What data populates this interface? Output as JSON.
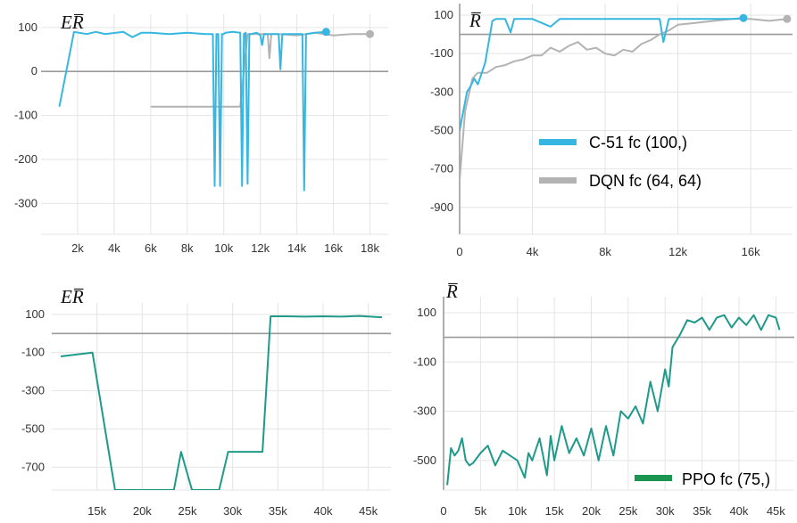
{
  "chart_data": [
    {
      "type": "line",
      "ylabel": "ER̅",
      "xlim": [
        0,
        19000
      ],
      "ylim": [
        -370,
        130
      ],
      "x_ticks": [
        {
          "v": 2000,
          "label": "2k"
        },
        {
          "v": 4000,
          "label": "4k"
        },
        {
          "v": 6000,
          "label": "6k"
        },
        {
          "v": 8000,
          "label": "8k"
        },
        {
          "v": 10000,
          "label": "10k"
        },
        {
          "v": 12000,
          "label": "12k"
        },
        {
          "v": 14000,
          "label": "14k"
        },
        {
          "v": 16000,
          "label": "16k"
        },
        {
          "v": 18000,
          "label": "18k"
        }
      ],
      "y_ticks": [
        {
          "v": 100,
          "label": "100"
        },
        {
          "v": 0,
          "label": "0"
        },
        {
          "v": -100,
          "label": "-100"
        },
        {
          "v": -200,
          "label": "-200"
        },
        {
          "v": -300,
          "label": "-300"
        }
      ],
      "zero_line": 0,
      "grid": true,
      "series": [
        {
          "color": "#b3b3b3",
          "x": [
            6000,
            10700,
            10900,
            11300,
            11800,
            12400,
            12500,
            12600,
            13000,
            14000,
            15000,
            16000,
            17000,
            18000
          ],
          "y": [
            -80,
            -80,
            -80,
            85,
            85,
            85,
            30,
            85,
            85,
            82,
            88,
            82,
            85,
            85
          ],
          "end_marker": true
        },
        {
          "color": "#36b6e0",
          "x": [
            1000,
            1800,
            2500,
            3000,
            3500,
            4500,
            5000,
            5500,
            6000,
            7000,
            8000,
            9000,
            9400,
            9500,
            9600,
            9700,
            9800,
            9900,
            10000,
            10100,
            10500,
            10900,
            11000,
            11100,
            11200,
            11300,
            11400,
            11500,
            11800,
            12000,
            12100,
            12200,
            12400,
            13000,
            13100,
            13200,
            14000,
            14300,
            14400,
            14500,
            15000,
            15600
          ],
          "y": [
            -80,
            90,
            85,
            90,
            85,
            90,
            78,
            88,
            88,
            85,
            88,
            85,
            85,
            -260,
            85,
            85,
            -260,
            85,
            85,
            88,
            90,
            88,
            -260,
            85,
            88,
            -255,
            85,
            85,
            88,
            82,
            60,
            85,
            85,
            85,
            5,
            85,
            85,
            85,
            -270,
            85,
            88,
            90
          ],
          "end_marker": true
        }
      ]
    },
    {
      "type": "line",
      "ylabel": "R̅",
      "xlim": [
        0,
        18300
      ],
      "ylim": [
        -1040,
        160
      ],
      "x_ticks": [
        {
          "v": 0,
          "label": "0"
        },
        {
          "v": 4000,
          "label": "4k"
        },
        {
          "v": 8000,
          "label": "8k"
        },
        {
          "v": 12000,
          "label": "12k"
        },
        {
          "v": 16000,
          "label": "16k"
        }
      ],
      "y_ticks": [
        {
          "v": 100,
          "label": "100"
        },
        {
          "v": -100,
          "label": "-100"
        },
        {
          "v": -300,
          "label": "-300"
        },
        {
          "v": -500,
          "label": "-500"
        },
        {
          "v": -700,
          "label": "-700"
        },
        {
          "v": -900,
          "label": "-900"
        }
      ],
      "zero_line": 0,
      "grid": true,
      "series": [
        {
          "name": "DQN fc (64, 64)",
          "color": "#b3b3b3",
          "x": [
            0,
            300,
            700,
            1000,
            1500,
            2000,
            2500,
            3000,
            3500,
            4000,
            4500,
            5000,
            5500,
            6000,
            6500,
            7000,
            7500,
            8000,
            8500,
            9000,
            9500,
            10000,
            10500,
            11000,
            11500,
            12000,
            13000,
            14000,
            15000,
            16000,
            17000,
            18000
          ],
          "y": [
            -760,
            -400,
            -230,
            -200,
            -200,
            -170,
            -160,
            -140,
            -130,
            -110,
            -110,
            -70,
            -90,
            -60,
            -40,
            -80,
            -70,
            -100,
            -110,
            -80,
            -90,
            -50,
            -30,
            0,
            20,
            50,
            60,
            70,
            80,
            80,
            70,
            80
          ],
          "end_marker": true
        },
        {
          "name": "C-51 fc (100,)",
          "color": "#36b6e0",
          "x": [
            0,
            200,
            400,
            600,
            800,
            1000,
            1400,
            1800,
            2000,
            2500,
            2800,
            3000,
            3500,
            4000,
            5000,
            5500,
            6000,
            7000,
            8000,
            9000,
            10000,
            11000,
            11200,
            11500,
            12000,
            13000,
            14000,
            15000,
            15600
          ],
          "y": [
            -500,
            -400,
            -300,
            -270,
            -230,
            -260,
            -150,
            70,
            80,
            80,
            10,
            80,
            80,
            80,
            40,
            80,
            80,
            80,
            80,
            80,
            80,
            80,
            -40,
            80,
            80,
            80,
            80,
            80,
            85
          ],
          "end_marker": true
        }
      ]
    },
    {
      "type": "line",
      "ylabel": "ER̅",
      "xlim": [
        10000,
        47500
      ],
      "ylim": [
        -820,
        160
      ],
      "x_ticks": [
        {
          "v": 15000,
          "label": "15k"
        },
        {
          "v": 20000,
          "label": "20k"
        },
        {
          "v": 25000,
          "label": "25k"
        },
        {
          "v": 30000,
          "label": "30k"
        },
        {
          "v": 35000,
          "label": "35k"
        },
        {
          "v": 40000,
          "label": "40k"
        },
        {
          "v": 45000,
          "label": "45k"
        }
      ],
      "y_ticks": [
        {
          "v": 100,
          "label": "100"
        },
        {
          "v": -100,
          "label": "-100"
        },
        {
          "v": -300,
          "label": "-300"
        },
        {
          "v": -500,
          "label": "-500"
        },
        {
          "v": -700,
          "label": "-700"
        }
      ],
      "zero_line": 0,
      "grid": true,
      "series": [
        {
          "color": "#1f9a8a",
          "x": [
            11000,
            14500,
            17000,
            23500,
            24300,
            25500,
            28500,
            29500,
            33300,
            34200,
            36000,
            38000,
            40000,
            42000,
            44000,
            46500
          ],
          "y": [
            -120,
            -100,
            -820,
            -820,
            -620,
            -820,
            -820,
            -620,
            -620,
            90,
            90,
            88,
            90,
            88,
            92,
            85
          ],
          "end_marker": false
        }
      ]
    },
    {
      "type": "line",
      "ylabel": "R̅",
      "xlim": [
        0,
        47500
      ],
      "ylim": [
        -620,
        165
      ],
      "x_ticks": [
        {
          "v": 0,
          "label": "0"
        },
        {
          "v": 5000,
          "label": "5k"
        },
        {
          "v": 10000,
          "label": "10k"
        },
        {
          "v": 15000,
          "label": "15k"
        },
        {
          "v": 20000,
          "label": "20k"
        },
        {
          "v": 25000,
          "label": "25k"
        },
        {
          "v": 30000,
          "label": "30k"
        },
        {
          "v": 35000,
          "label": "35k"
        },
        {
          "v": 40000,
          "label": "40k"
        },
        {
          "v": 45000,
          "label": "45k"
        }
      ],
      "y_ticks": [
        {
          "v": 100,
          "label": "100"
        },
        {
          "v": -100,
          "label": "-100"
        },
        {
          "v": -300,
          "label": "-300"
        },
        {
          "v": -500,
          "label": "-500"
        }
      ],
      "zero_line": 0,
      "grid": true,
      "series": [
        {
          "name": "PPO fc (75,)",
          "color": "#1f9a8a",
          "x": [
            500,
            1000,
            1500,
            2000,
            2500,
            3000,
            3500,
            4000,
            5000,
            6000,
            7000,
            8000,
            9000,
            10000,
            11000,
            11500,
            12000,
            13000,
            14000,
            14500,
            15000,
            16000,
            17000,
            18000,
            19000,
            20000,
            21000,
            22000,
            23000,
            24000,
            25000,
            26000,
            27000,
            28000,
            29000,
            30000,
            30500,
            31000,
            32000,
            33000,
            34000,
            35000,
            36000,
            37000,
            38000,
            39000,
            40000,
            41000,
            42000,
            43000,
            44000,
            45000,
            45500
          ],
          "y": [
            -600,
            -450,
            -480,
            -460,
            -410,
            -500,
            -520,
            -510,
            -470,
            -440,
            -520,
            -460,
            -480,
            -500,
            -570,
            -470,
            -500,
            -410,
            -560,
            -400,
            -500,
            -360,
            -470,
            -410,
            -480,
            -370,
            -500,
            -360,
            -480,
            -300,
            -330,
            -280,
            -350,
            -180,
            -300,
            -130,
            -200,
            -40,
            10,
            70,
            60,
            80,
            30,
            80,
            90,
            40,
            80,
            50,
            90,
            30,
            90,
            80,
            30
          ],
          "end_marker": false
        }
      ]
    }
  ],
  "legends": {
    "top": [
      {
        "label": "C-51 fc (100,)",
        "color": "#36b6e0"
      },
      {
        "label": "DQN fc (64, 64)",
        "color": "#b3b3b3"
      }
    ],
    "bottom": [
      {
        "label": "PPO fc (75,)",
        "color": "#1a9650"
      }
    ]
  }
}
